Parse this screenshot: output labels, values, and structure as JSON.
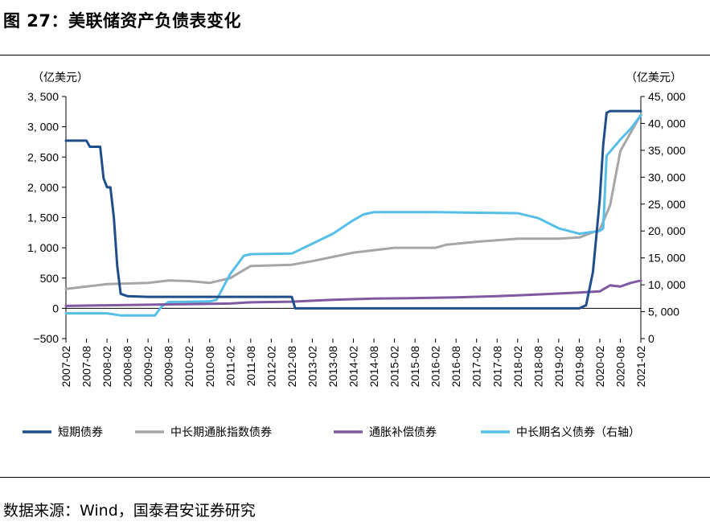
{
  "figure": {
    "title": "图 27：美联储资产负债表变化",
    "source": "数据来源：Wind，国泰君安证券研究"
  },
  "chart_data": {
    "type": "line",
    "left_unit": "（亿美元）",
    "right_unit": "（亿美元）",
    "left_axis": {
      "min": -500,
      "max": 3500,
      "ticks": [
        -500,
        0,
        500,
        1000,
        1500,
        2000,
        2500,
        3000,
        3500
      ],
      "tick_labels": [
        "−500",
        "0",
        "500",
        "1, 000",
        "1, 500",
        "2, 000",
        "2, 500",
        "3, 000",
        "3, 500"
      ]
    },
    "right_axis": {
      "min": 0,
      "max": 45000,
      "ticks": [
        0,
        5000,
        10000,
        15000,
        20000,
        25000,
        30000,
        35000,
        40000,
        45000
      ],
      "tick_labels": [
        "0",
        "5, 000",
        "10, 000",
        "15, 000",
        "20, 000",
        "25, 000",
        "30, 000",
        "35, 000",
        "40, 000",
        "45, 000"
      ]
    },
    "x_range": [
      "2007-02",
      "2021-02"
    ],
    "x_tick_labels": [
      "2007-02",
      "2007-08",
      "2008-02",
      "2008-08",
      "2009-02",
      "2009-08",
      "2010-02",
      "2010-08",
      "2011-02",
      "2011-08",
      "2012-02",
      "2012-08",
      "2013-02",
      "2013-08",
      "2014-02",
      "2014-08",
      "2015-02",
      "2015-08",
      "2016-02",
      "2016-08",
      "2017-02",
      "2017-08",
      "2018-02",
      "2018-08",
      "2019-02",
      "2019-08",
      "2020-02",
      "2020-08",
      "2021-02"
    ],
    "grid": false,
    "legend_placement": "bottom",
    "series": [
      {
        "name": "短期债券",
        "axis": "left",
        "color": "#1f4e8c",
        "width": 3,
        "points": [
          [
            "2007-02",
            2770
          ],
          [
            "2007-08",
            2770
          ],
          [
            "2007-09",
            2670
          ],
          [
            "2007-12",
            2670
          ],
          [
            "2008-01",
            2150
          ],
          [
            "2008-02",
            2000
          ],
          [
            "2008-03",
            2000
          ],
          [
            "2008-04",
            1500
          ],
          [
            "2008-05",
            700
          ],
          [
            "2008-06",
            240
          ],
          [
            "2008-08",
            200
          ],
          [
            "2009-02",
            190
          ],
          [
            "2012-02",
            190
          ],
          [
            "2012-08",
            190
          ],
          [
            "2012-09",
            0
          ],
          [
            "2019-08",
            0
          ],
          [
            "2019-10",
            50
          ],
          [
            "2019-12",
            600
          ],
          [
            "2020-01",
            1200
          ],
          [
            "2020-02",
            1800
          ],
          [
            "2020-03",
            2700
          ],
          [
            "2020-04",
            3230
          ],
          [
            "2020-05",
            3260
          ],
          [
            "2021-02",
            3260
          ]
        ]
      },
      {
        "name": "中长期通胀指数债券",
        "axis": "left",
        "color": "#a6a6a6",
        "width": 3,
        "points": [
          [
            "2007-02",
            320
          ],
          [
            "2008-02",
            400
          ],
          [
            "2009-02",
            420
          ],
          [
            "2009-08",
            460
          ],
          [
            "2010-02",
            450
          ],
          [
            "2010-08",
            420
          ],
          [
            "2011-02",
            500
          ],
          [
            "2011-08",
            700
          ],
          [
            "2012-08",
            720
          ],
          [
            "2013-02",
            780
          ],
          [
            "2014-02",
            920
          ],
          [
            "2015-02",
            1000
          ],
          [
            "2016-02",
            1000
          ],
          [
            "2016-05",
            1050
          ],
          [
            "2017-02",
            1100
          ],
          [
            "2018-02",
            1150
          ],
          [
            "2019-02",
            1150
          ],
          [
            "2019-08",
            1170
          ],
          [
            "2020-02",
            1300
          ],
          [
            "2020-05",
            1700
          ],
          [
            "2020-08",
            2600
          ],
          [
            "2021-02",
            3200
          ]
        ]
      },
      {
        "name": "通胀补偿债券",
        "axis": "left",
        "color": "#7f5aa2",
        "width": 3,
        "points": [
          [
            "2007-02",
            40
          ],
          [
            "2008-02",
            50
          ],
          [
            "2009-02",
            60
          ],
          [
            "2010-02",
            70
          ],
          [
            "2011-02",
            80
          ],
          [
            "2011-08",
            100
          ],
          [
            "2012-08",
            110
          ],
          [
            "2013-08",
            140
          ],
          [
            "2014-08",
            160
          ],
          [
            "2015-08",
            170
          ],
          [
            "2016-08",
            180
          ],
          [
            "2017-08",
            200
          ],
          [
            "2018-08",
            230
          ],
          [
            "2019-08",
            260
          ],
          [
            "2020-02",
            280
          ],
          [
            "2020-05",
            380
          ],
          [
            "2020-08",
            360
          ],
          [
            "2020-11",
            420
          ],
          [
            "2021-02",
            460
          ]
        ]
      },
      {
        "name": "中长期名义债券（右轴）",
        "axis": "right",
        "color": "#56bfe8",
        "width": 3,
        "points": [
          [
            "2007-02",
            4700
          ],
          [
            "2008-02",
            4700
          ],
          [
            "2008-06",
            4300
          ],
          [
            "2009-04",
            4300
          ],
          [
            "2009-06",
            6000
          ],
          [
            "2009-08",
            6800
          ],
          [
            "2010-08",
            6900
          ],
          [
            "2010-10",
            7200
          ],
          [
            "2011-02",
            12000
          ],
          [
            "2011-06",
            15400
          ],
          [
            "2011-08",
            15700
          ],
          [
            "2012-08",
            15800
          ],
          [
            "2013-08",
            19500
          ],
          [
            "2014-02",
            22000
          ],
          [
            "2014-05",
            23100
          ],
          [
            "2014-08",
            23500
          ],
          [
            "2016-02",
            23500
          ],
          [
            "2017-02",
            23400
          ],
          [
            "2018-02",
            23300
          ],
          [
            "2018-08",
            22400
          ],
          [
            "2019-02",
            20500
          ],
          [
            "2019-08",
            19500
          ],
          [
            "2020-02",
            20000
          ],
          [
            "2020-03",
            20500
          ],
          [
            "2020-04",
            34000
          ],
          [
            "2020-06",
            35500
          ],
          [
            "2020-08",
            37000
          ],
          [
            "2020-11",
            39000
          ],
          [
            "2021-02",
            41500
          ]
        ]
      }
    ]
  }
}
